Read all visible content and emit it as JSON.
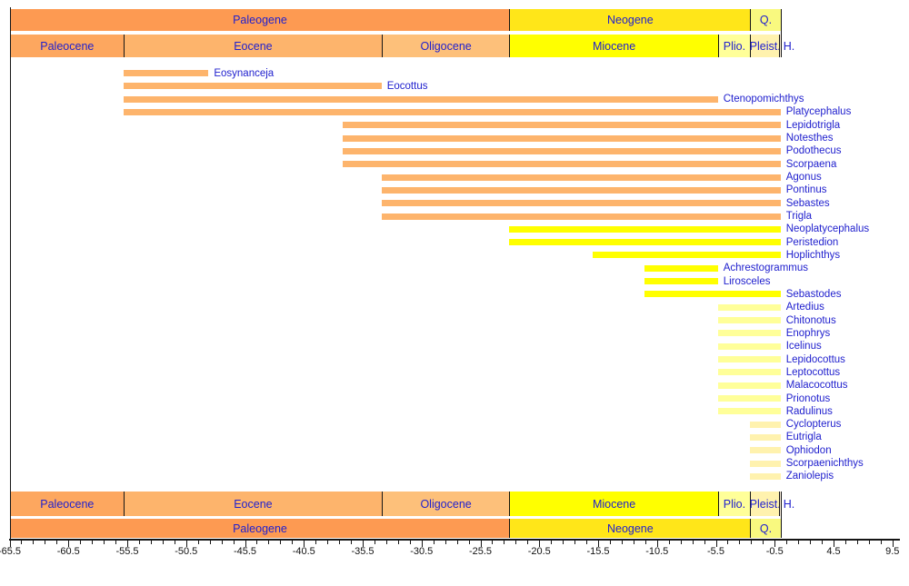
{
  "colors": {
    "header_label": "#2121CE",
    "taxon_label": "#2121CE",
    "tick_label": "#111111",
    "axis_line": "#151515",
    "background": "#FFFFFF"
  },
  "chart_data": {
    "type": "bar",
    "subtype": "stratigraphic-range-chart",
    "title": "",
    "xlabel": "",
    "ylabel": "",
    "grid": false,
    "legend": "none",
    "x_axis": {
      "min": -65.5,
      "max": 9.5,
      "major_tick_labels": [
        "-65.5",
        "-60.5",
        "-55.5",
        "-50.5",
        "-45.5",
        "-40.5",
        "-35.5",
        "-30.5",
        "-25.5",
        "-20.5",
        "-15.5",
        "-10.5",
        "-5.5",
        "-0.5",
        "4.5",
        "9.5"
      ],
      "minor_tick_interval": 1
    },
    "periods": [
      {
        "name": "Paleogene",
        "start": -65.5,
        "end": -23.03,
        "color": "#FD9A52"
      },
      {
        "name": "Neogene",
        "start": -23.03,
        "end": -2.588,
        "color": "#FFE619"
      },
      {
        "name": "Q.",
        "start": -2.588,
        "end": 0,
        "color": "#F9F97F"
      }
    ],
    "epochs": [
      {
        "name": "Paleocene",
        "start": -65.5,
        "end": -55.8,
        "color": "#FDA75F"
      },
      {
        "name": "Eocene",
        "start": -55.8,
        "end": -33.9,
        "color": "#FDB46C"
      },
      {
        "name": "Oligocene",
        "start": -33.9,
        "end": -23.03,
        "color": "#FDC07A"
      },
      {
        "name": "Miocene",
        "start": -23.03,
        "end": -5.332,
        "color": "#FFFF00"
      },
      {
        "name": "Plio.",
        "start": -5.332,
        "end": -2.588,
        "color": "#FFFF99"
      },
      {
        "name": "Pleist.",
        "start": -2.588,
        "end": -0.12,
        "color": "#FFF2AE"
      },
      {
        "name": "H.",
        "start": -0.12,
        "end": 0,
        "color": "#FEF2E0",
        "label_outside": true
      }
    ],
    "taxa": [
      {
        "name": "Eosynanceja",
        "start": -55.8,
        "end": -48.6,
        "color": "#FDB46C"
      },
      {
        "name": "Eocottus",
        "start": -55.8,
        "end": -33.9,
        "color": "#FDB46C"
      },
      {
        "name": "Ctenopomichthys",
        "start": -55.8,
        "end": -5.33,
        "color": "#FDB46C"
      },
      {
        "name": "Platycephalus",
        "start": -55.8,
        "end": 0,
        "color": "#FDB46C"
      },
      {
        "name": "Lepidotrigla",
        "start": -37.2,
        "end": 0,
        "color": "#FDB46C"
      },
      {
        "name": "Notesthes",
        "start": -37.2,
        "end": 0,
        "color": "#FDB46C"
      },
      {
        "name": "Podothecus",
        "start": -37.2,
        "end": 0,
        "color": "#FDB46C"
      },
      {
        "name": "Scorpaena",
        "start": -37.2,
        "end": 0,
        "color": "#FDB46C"
      },
      {
        "name": "Agonus",
        "start": -33.9,
        "end": 0,
        "color": "#FDB46C"
      },
      {
        "name": "Pontinus",
        "start": -33.9,
        "end": 0,
        "color": "#FDB46C"
      },
      {
        "name": "Sebastes",
        "start": -33.9,
        "end": 0,
        "color": "#FDB46C"
      },
      {
        "name": "Trigla",
        "start": -33.9,
        "end": 0,
        "color": "#FDB46C"
      },
      {
        "name": "Neoplatycephalus",
        "start": -23.03,
        "end": 0,
        "color": "#FFFF00"
      },
      {
        "name": "Peristedion",
        "start": -23.03,
        "end": 0,
        "color": "#FFFF00"
      },
      {
        "name": "Hoplichthys",
        "start": -15.97,
        "end": 0,
        "color": "#FFFF00"
      },
      {
        "name": "Achrestogrammus",
        "start": -11.6,
        "end": -5.33,
        "color": "#FFFF00"
      },
      {
        "name": "Lirosceles",
        "start": -11.6,
        "end": -5.33,
        "color": "#FFFF00"
      },
      {
        "name": "Sebastodes",
        "start": -11.6,
        "end": 0,
        "color": "#FFFF00"
      },
      {
        "name": "Artedius",
        "start": -5.33,
        "end": 0,
        "color": "#FFFF99"
      },
      {
        "name": "Chitonotus",
        "start": -5.33,
        "end": 0,
        "color": "#FFFF99"
      },
      {
        "name": "Enophrys",
        "start": -5.33,
        "end": 0,
        "color": "#FFFF99"
      },
      {
        "name": "Icelinus",
        "start": -5.33,
        "end": 0,
        "color": "#FFFF99"
      },
      {
        "name": "Lepidocottus",
        "start": -5.33,
        "end": 0,
        "color": "#FFFF99"
      },
      {
        "name": "Leptocottus",
        "start": -5.33,
        "end": 0,
        "color": "#FFFF99"
      },
      {
        "name": "Malacocottus",
        "start": -5.33,
        "end": 0,
        "color": "#FFFF99"
      },
      {
        "name": "Prionotus",
        "start": -5.33,
        "end": 0,
        "color": "#FFFF99"
      },
      {
        "name": "Radulinus",
        "start": -5.33,
        "end": 0,
        "color": "#FFFF99"
      },
      {
        "name": "Cyclopterus",
        "start": -2.588,
        "end": 0,
        "color": "#FFF2AE"
      },
      {
        "name": "Eutrigla",
        "start": -2.588,
        "end": 0,
        "color": "#FFF2AE"
      },
      {
        "name": "Ophiodon",
        "start": -2.588,
        "end": 0,
        "color": "#FFF2AE"
      },
      {
        "name": "Scorpaenichthys",
        "start": -2.588,
        "end": 0,
        "color": "#FFF2AE"
      },
      {
        "name": "Zaniolepis",
        "start": -2.588,
        "end": 0,
        "color": "#FFF2AE"
      }
    ]
  }
}
